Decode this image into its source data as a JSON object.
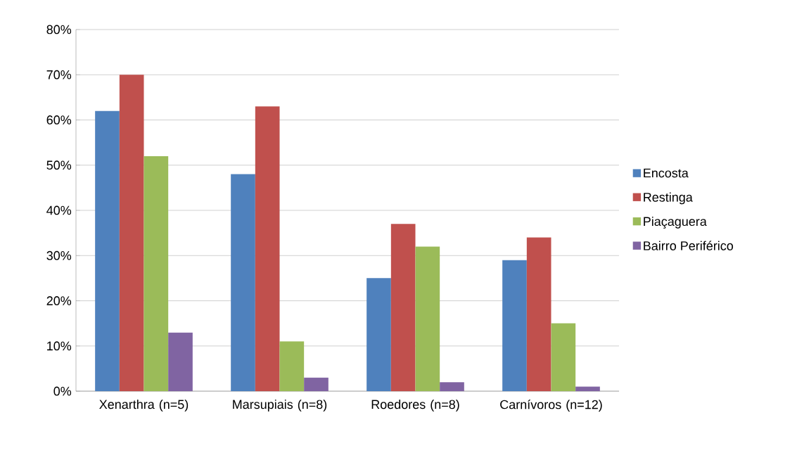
{
  "chart_data": {
    "type": "bar",
    "categories": [
      "Xenarthra (n=5)",
      "Marsupiais (n=8)",
      "Roedores (n=8)",
      "Carnívoros (n=12)"
    ],
    "series": [
      {
        "name": "Encosta",
        "color": "#4f81bd",
        "values": [
          62,
          48,
          25,
          29
        ]
      },
      {
        "name": "Restinga",
        "color": "#c0504d",
        "values": [
          70,
          63,
          37,
          34
        ]
      },
      {
        "name": "Piaçaguera",
        "color": "#9bbb59",
        "values": [
          52,
          11,
          32,
          15
        ]
      },
      {
        "name": "Bairro Periférico",
        "color": "#8064a2",
        "values": [
          13,
          3,
          2,
          1
        ]
      }
    ],
    "ylim": [
      0,
      80
    ],
    "yticks": [
      {
        "value": 0,
        "label": "0%"
      },
      {
        "value": 10,
        "label": "10%"
      },
      {
        "value": 20,
        "label": "20%"
      },
      {
        "value": 30,
        "label": "30%"
      },
      {
        "value": 40,
        "label": "40%"
      },
      {
        "value": 50,
        "label": "50%"
      },
      {
        "value": 60,
        "label": "60%"
      },
      {
        "value": 70,
        "label": "70%"
      },
      {
        "value": 80,
        "label": "80%"
      }
    ],
    "grid": "y",
    "legend": "right"
  }
}
